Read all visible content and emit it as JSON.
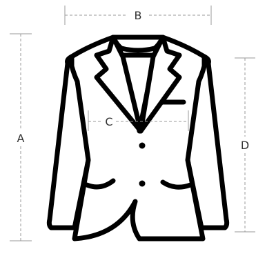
{
  "diagram": {
    "subject": "jacket-size-guide",
    "colors": {
      "outline": "#000000",
      "dimension_line": "#9a9a9a",
      "label": "#333333",
      "background": "#ffffff"
    },
    "dimensions": {
      "a": {
        "label": "A"
      },
      "b": {
        "label": "B"
      },
      "c": {
        "label": "C"
      },
      "d": {
        "label": "D"
      }
    }
  }
}
